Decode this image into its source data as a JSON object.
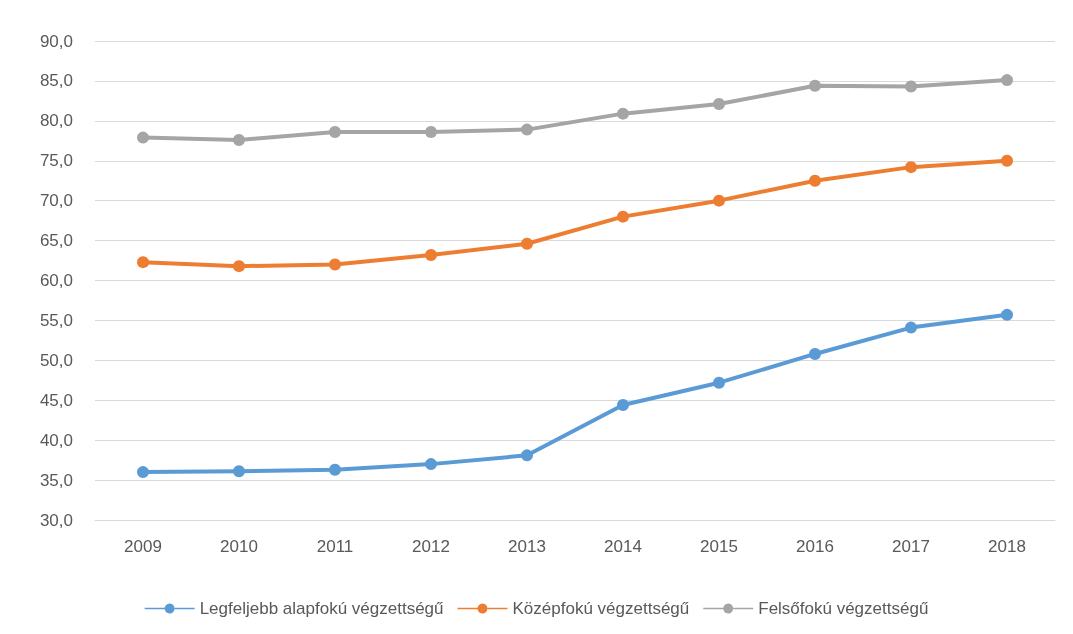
{
  "chart_data": {
    "type": "line",
    "categories": [
      "2009",
      "2010",
      "2011",
      "2012",
      "2013",
      "2014",
      "2015",
      "2016",
      "2017",
      "2018"
    ],
    "series": [
      {
        "name": "Legfeljebb alapfokú végzettségű",
        "color": "#5b9bd5",
        "values": [
          36.0,
          36.1,
          36.3,
          37.0,
          38.1,
          44.4,
          47.2,
          50.8,
          54.1,
          55.7
        ]
      },
      {
        "name": "Középfokú végzettségű",
        "color": "#ed7d31",
        "values": [
          62.3,
          61.8,
          62.0,
          63.2,
          64.6,
          68.0,
          70.0,
          72.5,
          74.2,
          75.0
        ]
      },
      {
        "name": "Felsőfokú végzettségű",
        "color": "#a5a5a5",
        "values": [
          77.9,
          77.6,
          78.6,
          78.6,
          78.9,
          80.9,
          82.1,
          84.4,
          84.3,
          85.1
        ]
      }
    ],
    "ylim": [
      30,
      90
    ],
    "yticks": [
      {
        "value": 30,
        "label": "30,0"
      },
      {
        "value": 35,
        "label": "35,0"
      },
      {
        "value": 40,
        "label": "40,0"
      },
      {
        "value": 45,
        "label": "45,0"
      },
      {
        "value": 50,
        "label": "50,0"
      },
      {
        "value": 55,
        "label": "55,0"
      },
      {
        "value": 60,
        "label": "60,0"
      },
      {
        "value": 65,
        "label": "65,0"
      },
      {
        "value": 70,
        "label": "70,0"
      },
      {
        "value": 75,
        "label": "75,0"
      },
      {
        "value": 80,
        "label": "80,0"
      },
      {
        "value": 85,
        "label": "85,0"
      },
      {
        "value": 90,
        "label": "90,0"
      }
    ],
    "grid": "y",
    "legend": "bottom",
    "marker": "circle",
    "line_style": "solid"
  }
}
